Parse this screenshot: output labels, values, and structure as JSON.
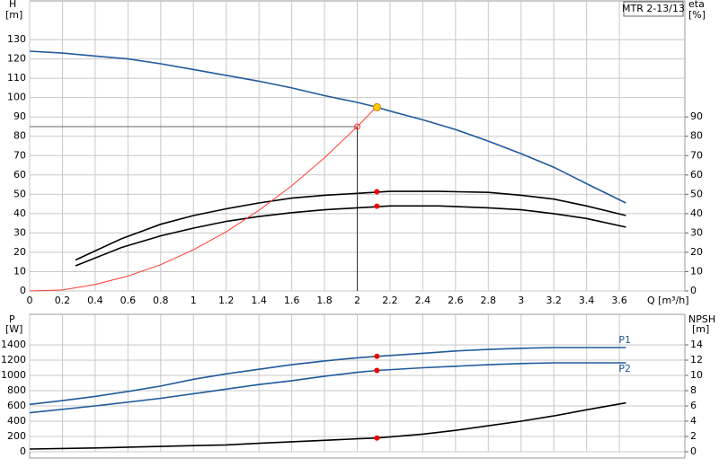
{
  "chart_data": [
    {
      "type": "line",
      "box_label": "MTR 2-13/13",
      "ylabel": "H",
      "yunit": "[m]",
      "y2label": "eta",
      "y2unit": "[%]",
      "xlabel": "Q [m³/h]",
      "xlim": [
        0,
        4.0
      ],
      "xticks": [
        0,
        0.2,
        0.4,
        0.6,
        0.8,
        1.0,
        1.2,
        1.4,
        1.6,
        1.8,
        2.0,
        2.2,
        2.4,
        2.6,
        2.8,
        3.0,
        3.2,
        3.4,
        3.6
      ],
      "ylim": [
        0,
        150
      ],
      "yticks": [
        0,
        10,
        20,
        30,
        40,
        50,
        60,
        70,
        80,
        90,
        100,
        110,
        120,
        130
      ],
      "y2lim": [
        0,
        150
      ],
      "y2ticks": [
        0,
        10,
        20,
        30,
        40,
        50,
        60,
        70,
        80,
        90
      ],
      "grid": true,
      "series": [
        {
          "color": "#1f5a9a",
          "x": [
            0,
            0.2,
            0.4,
            0.6,
            0.8,
            1.0,
            1.2,
            1.4,
            1.6,
            1.8,
            2.0,
            2.12,
            2.2,
            2.4,
            2.6,
            2.8,
            3.0,
            3.2,
            3.4,
            3.64
          ],
          "values": [
            124,
            123,
            121.5,
            120,
            117.5,
            114.5,
            111.5,
            108.5,
            105,
            101,
            97.5,
            95,
            93,
            88.5,
            83.5,
            77.5,
            71,
            64,
            55.5,
            45.5
          ]
        },
        {
          "color": "#000000",
          "axis": "y2",
          "x": [
            0.28,
            0.56,
            0.8,
            1.0,
            1.2,
            1.4,
            1.6,
            1.8,
            2.0,
            2.2,
            2.5,
            2.8,
            3.0,
            3.2,
            3.4,
            3.64
          ],
          "values": [
            16,
            27,
            34.5,
            39,
            42.5,
            45.5,
            48,
            49.5,
            50.5,
            51.5,
            51.5,
            51,
            49.5,
            47.5,
            44,
            39
          ]
        },
        {
          "color": "#000000",
          "axis": "y2",
          "x": [
            0.28,
            0.56,
            0.8,
            1.0,
            1.2,
            1.4,
            1.6,
            1.8,
            2.0,
            2.2,
            2.5,
            2.8,
            3.0,
            3.2,
            3.4,
            3.64
          ],
          "values": [
            13,
            22.5,
            28.5,
            32.5,
            36,
            38.5,
            40.5,
            42,
            43,
            44,
            44,
            43,
            42,
            40,
            37.5,
            33
          ]
        },
        {
          "color": "#ff3b30",
          "x": [
            0,
            0.2,
            0.4,
            0.6,
            0.8,
            1.0,
            1.2,
            1.4,
            1.6,
            1.8,
            2.0,
            2.12
          ],
          "values": [
            0,
            0.5,
            3.4,
            7.7,
            13.6,
            21.3,
            30.6,
            41.7,
            54.4,
            68.9,
            85,
            95.5
          ]
        }
      ],
      "guide": {
        "x": 2.0,
        "y": 85
      },
      "points": [
        {
          "x": 2.12,
          "y": 95,
          "color": "#ffcc00"
        },
        {
          "x": 2.12,
          "y": 51.3,
          "color": "#ee0000",
          "axis": "y2"
        },
        {
          "x": 2.12,
          "y": 43.8,
          "color": "#ee0000",
          "axis": "y2"
        }
      ]
    },
    {
      "type": "line",
      "ylabel": "P",
      "yunit": "[W]",
      "y2label": "NPSH",
      "y2unit": "[m]",
      "xlim": [
        0,
        4.0
      ],
      "ylim": [
        0,
        1800
      ],
      "yticks": [
        0,
        200,
        400,
        600,
        800,
        1000,
        1200,
        1400
      ],
      "y2lim": [
        0,
        18
      ],
      "y2ticks": [
        0,
        2,
        4,
        6,
        8,
        10,
        12,
        14
      ],
      "grid": true,
      "series": [
        {
          "name": "P1",
          "color": "#1f5a9a",
          "x": [
            0,
            0.2,
            0.4,
            0.6,
            0.8,
            1.0,
            1.2,
            1.4,
            1.6,
            1.8,
            2.0,
            2.12,
            2.4,
            2.6,
            2.8,
            3.0,
            3.2,
            3.4,
            3.64
          ],
          "values": [
            620,
            670,
            725,
            790,
            860,
            950,
            1020,
            1080,
            1140,
            1190,
            1230,
            1250,
            1290,
            1320,
            1340,
            1355,
            1365,
            1365,
            1365
          ]
        },
        {
          "name": "P2",
          "color": "#1f5a9a",
          "x": [
            0,
            0.4,
            0.8,
            1.0,
            1.2,
            1.4,
            1.6,
            1.8,
            2.0,
            2.12,
            2.4,
            2.6,
            2.8,
            3.0,
            3.2,
            3.4,
            3.64
          ],
          "values": [
            510,
            600,
            700,
            760,
            820,
            880,
            930,
            990,
            1040,
            1065,
            1100,
            1120,
            1140,
            1155,
            1165,
            1165,
            1165
          ]
        },
        {
          "color": "#000000",
          "axis": "y2",
          "x": [
            0,
            0.4,
            0.8,
            1.0,
            1.2,
            1.4,
            1.6,
            1.8,
            2.0,
            2.12,
            2.4,
            2.6,
            2.8,
            3.0,
            3.2,
            3.4,
            3.64
          ],
          "values": [
            0.35,
            0.5,
            0.7,
            0.8,
            0.9,
            1.1,
            1.3,
            1.5,
            1.7,
            1.8,
            2.3,
            2.8,
            3.4,
            4.0,
            4.7,
            5.5,
            6.4
          ]
        }
      ],
      "points": [
        {
          "x": 2.12,
          "y": 1250,
          "color": "#ee0000"
        },
        {
          "x": 2.12,
          "y": 1065,
          "color": "#ee0000"
        },
        {
          "x": 2.12,
          "y": 1.8,
          "color": "#ee0000",
          "axis": "y2"
        }
      ]
    }
  ]
}
